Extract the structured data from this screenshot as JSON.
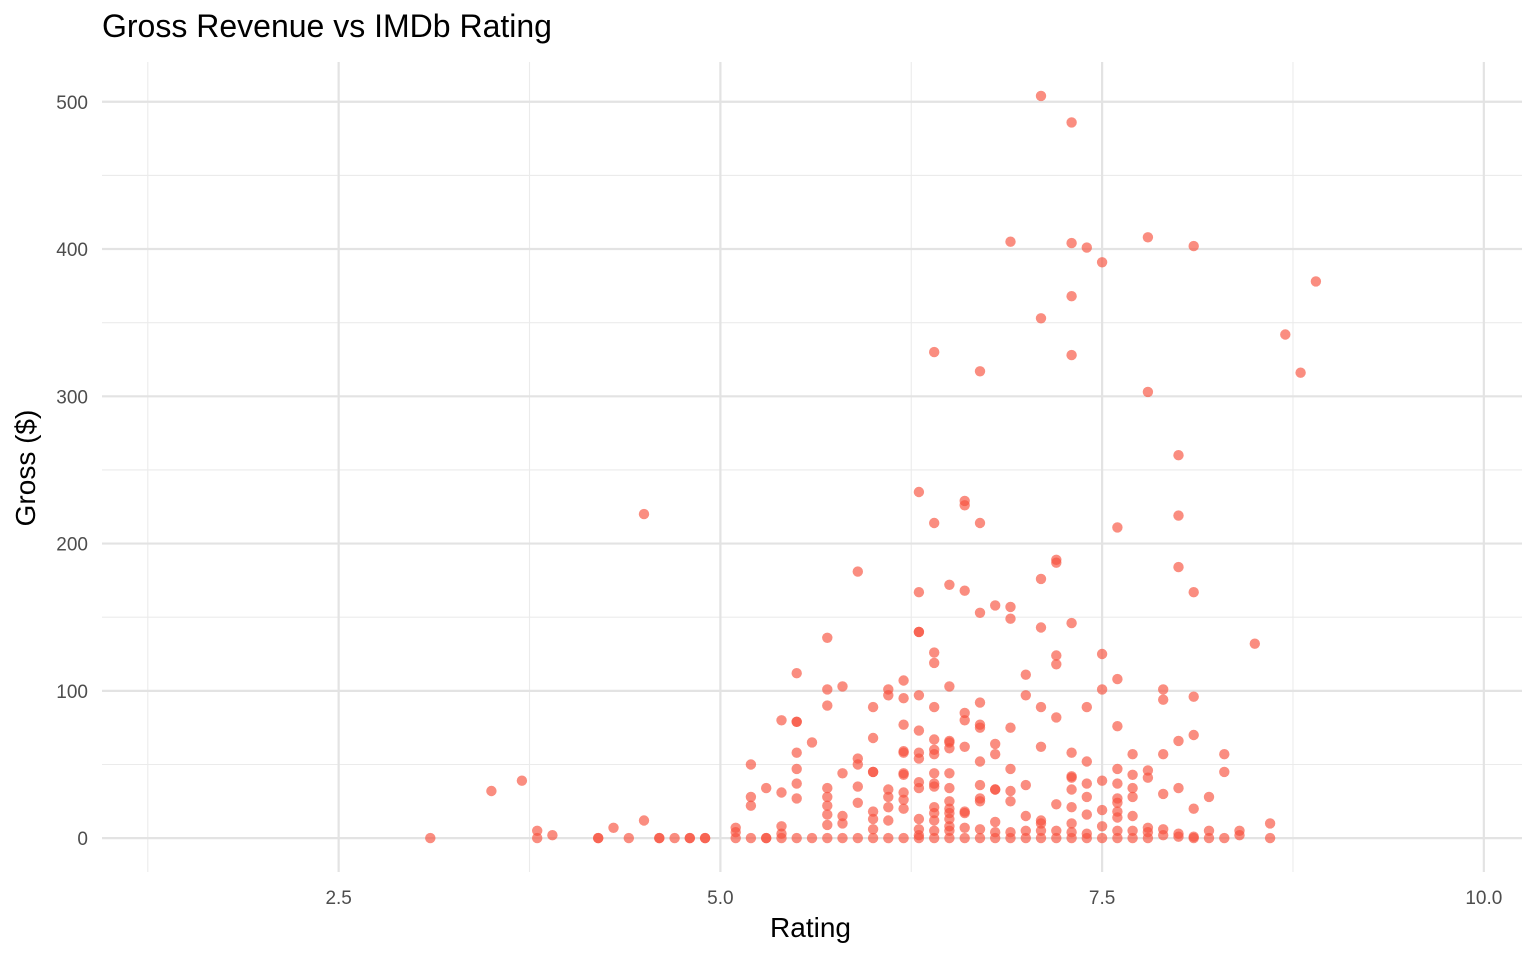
{
  "chart_data": {
    "type": "scatter",
    "title": "Gross Revenue vs IMDb Rating",
    "xlabel": "Rating",
    "ylabel": "Gross ($)",
    "xlim": [
      0.95,
      10.25
    ],
    "ylim": [
      -23,
      527
    ],
    "x_ticks": [
      2.5,
      5.0,
      7.5,
      10.0
    ],
    "x_tick_labels": [
      "2.5",
      "5.0",
      "7.5",
      "10.0"
    ],
    "y_ticks": [
      0,
      100,
      200,
      300,
      400,
      500
    ],
    "y_tick_labels": [
      "0",
      "100",
      "200",
      "300",
      "400",
      "500"
    ],
    "grid": true,
    "legend": "none",
    "point_color": "#f8503c",
    "points": [
      [
        3.1,
        0
      ],
      [
        3.5,
        32
      ],
      [
        3.7,
        39
      ],
      [
        3.8,
        5
      ],
      [
        3.8,
        0
      ],
      [
        3.9,
        2
      ],
      [
        4.2,
        0
      ],
      [
        4.2,
        0
      ],
      [
        4.3,
        7
      ],
      [
        4.4,
        0
      ],
      [
        4.5,
        12
      ],
      [
        4.5,
        220
      ],
      [
        4.6,
        0
      ],
      [
        4.6,
        0
      ],
      [
        4.7,
        0
      ],
      [
        4.8,
        0
      ],
      [
        4.8,
        0
      ],
      [
        4.9,
        0
      ],
      [
        4.9,
        0
      ],
      [
        5.1,
        7
      ],
      [
        5.1,
        4
      ],
      [
        5.1,
        0
      ],
      [
        5.2,
        50
      ],
      [
        5.2,
        28
      ],
      [
        5.2,
        22
      ],
      [
        5.2,
        0
      ],
      [
        5.3,
        34
      ],
      [
        5.3,
        0
      ],
      [
        5.3,
        0
      ],
      [
        5.4,
        80
      ],
      [
        5.4,
        31
      ],
      [
        5.4,
        8
      ],
      [
        5.4,
        3
      ],
      [
        5.4,
        0
      ],
      [
        5.5,
        112
      ],
      [
        5.5,
        79
      ],
      [
        5.5,
        79
      ],
      [
        5.5,
        58
      ],
      [
        5.5,
        47
      ],
      [
        5.5,
        37
      ],
      [
        5.5,
        27
      ],
      [
        5.5,
        0
      ],
      [
        5.6,
        65
      ],
      [
        5.6,
        0
      ],
      [
        5.7,
        136
      ],
      [
        5.7,
        101
      ],
      [
        5.7,
        90
      ],
      [
        5.7,
        34
      ],
      [
        5.7,
        28
      ],
      [
        5.7,
        22
      ],
      [
        5.7,
        16
      ],
      [
        5.7,
        9
      ],
      [
        5.7,
        0
      ],
      [
        5.8,
        103
      ],
      [
        5.8,
        44
      ],
      [
        5.8,
        15
      ],
      [
        5.8,
        10
      ],
      [
        5.8,
        0
      ],
      [
        5.9,
        181
      ],
      [
        5.9,
        54
      ],
      [
        5.9,
        50
      ],
      [
        5.9,
        35
      ],
      [
        5.9,
        24
      ],
      [
        5.9,
        0
      ],
      [
        6.0,
        89
      ],
      [
        6.0,
        68
      ],
      [
        6.0,
        45
      ],
      [
        6.0,
        45
      ],
      [
        6.0,
        18
      ],
      [
        6.0,
        13
      ],
      [
        6.0,
        6
      ],
      [
        6.0,
        0
      ],
      [
        6.1,
        101
      ],
      [
        6.1,
        97
      ],
      [
        6.1,
        33
      ],
      [
        6.1,
        28
      ],
      [
        6.1,
        21
      ],
      [
        6.1,
        12
      ],
      [
        6.1,
        0
      ],
      [
        6.2,
        107
      ],
      [
        6.2,
        95
      ],
      [
        6.2,
        77
      ],
      [
        6.2,
        59
      ],
      [
        6.2,
        58
      ],
      [
        6.2,
        44
      ],
      [
        6.2,
        43
      ],
      [
        6.2,
        31
      ],
      [
        6.2,
        26
      ],
      [
        6.2,
        20
      ],
      [
        6.2,
        0
      ],
      [
        6.3,
        235
      ],
      [
        6.3,
        167
      ],
      [
        6.3,
        140
      ],
      [
        6.3,
        140
      ],
      [
        6.3,
        97
      ],
      [
        6.3,
        73
      ],
      [
        6.3,
        58
      ],
      [
        6.3,
        54
      ],
      [
        6.3,
        38
      ],
      [
        6.3,
        34
      ],
      [
        6.3,
        13
      ],
      [
        6.3,
        6
      ],
      [
        6.3,
        2
      ],
      [
        6.3,
        0
      ],
      [
        6.4,
        330
      ],
      [
        6.4,
        214
      ],
      [
        6.4,
        126
      ],
      [
        6.4,
        119
      ],
      [
        6.4,
        89
      ],
      [
        6.4,
        67
      ],
      [
        6.4,
        60
      ],
      [
        6.4,
        57
      ],
      [
        6.4,
        44
      ],
      [
        6.4,
        37
      ],
      [
        6.4,
        35
      ],
      [
        6.4,
        21
      ],
      [
        6.4,
        17
      ],
      [
        6.4,
        12
      ],
      [
        6.4,
        5
      ],
      [
        6.4,
        0
      ],
      [
        6.5,
        172
      ],
      [
        6.5,
        103
      ],
      [
        6.5,
        66
      ],
      [
        6.5,
        65
      ],
      [
        6.5,
        61
      ],
      [
        6.5,
        44
      ],
      [
        6.5,
        34
      ],
      [
        6.5,
        25
      ],
      [
        6.5,
        20
      ],
      [
        6.5,
        17
      ],
      [
        6.5,
        13
      ],
      [
        6.5,
        8
      ],
      [
        6.5,
        5
      ],
      [
        6.5,
        0
      ],
      [
        6.6,
        229
      ],
      [
        6.6,
        226
      ],
      [
        6.6,
        168
      ],
      [
        6.6,
        85
      ],
      [
        6.6,
        80
      ],
      [
        6.6,
        62
      ],
      [
        6.6,
        18
      ],
      [
        6.6,
        17
      ],
      [
        6.6,
        7
      ],
      [
        6.6,
        0
      ],
      [
        6.7,
        317
      ],
      [
        6.7,
        214
      ],
      [
        6.7,
        153
      ],
      [
        6.7,
        92
      ],
      [
        6.7,
        77
      ],
      [
        6.7,
        75
      ],
      [
        6.7,
        52
      ],
      [
        6.7,
        36
      ],
      [
        6.7,
        27
      ],
      [
        6.7,
        25
      ],
      [
        6.7,
        6
      ],
      [
        6.7,
        0
      ],
      [
        6.8,
        158
      ],
      [
        6.8,
        64
      ],
      [
        6.8,
        57
      ],
      [
        6.8,
        33
      ],
      [
        6.8,
        33
      ],
      [
        6.8,
        11
      ],
      [
        6.8,
        4
      ],
      [
        6.8,
        0
      ],
      [
        6.9,
        405
      ],
      [
        6.9,
        157
      ],
      [
        6.9,
        149
      ],
      [
        6.9,
        75
      ],
      [
        6.9,
        47
      ],
      [
        6.9,
        32
      ],
      [
        6.9,
        25
      ],
      [
        6.9,
        4
      ],
      [
        6.9,
        0
      ],
      [
        7.0,
        111
      ],
      [
        7.0,
        97
      ],
      [
        7.0,
        36
      ],
      [
        7.0,
        15
      ],
      [
        7.0,
        5
      ],
      [
        7.0,
        0
      ],
      [
        7.1,
        504
      ],
      [
        7.1,
        353
      ],
      [
        7.1,
        176
      ],
      [
        7.1,
        143
      ],
      [
        7.1,
        89
      ],
      [
        7.1,
        62
      ],
      [
        7.1,
        12
      ],
      [
        7.1,
        10
      ],
      [
        7.1,
        5
      ],
      [
        7.1,
        0
      ],
      [
        7.2,
        189
      ],
      [
        7.2,
        187
      ],
      [
        7.2,
        124
      ],
      [
        7.2,
        118
      ],
      [
        7.2,
        82
      ],
      [
        7.2,
        23
      ],
      [
        7.2,
        5
      ],
      [
        7.2,
        0
      ],
      [
        7.3,
        486
      ],
      [
        7.3,
        404
      ],
      [
        7.3,
        368
      ],
      [
        7.3,
        328
      ],
      [
        7.3,
        146
      ],
      [
        7.3,
        58
      ],
      [
        7.3,
        42
      ],
      [
        7.3,
        41
      ],
      [
        7.3,
        33
      ],
      [
        7.3,
        21
      ],
      [
        7.3,
        10
      ],
      [
        7.3,
        4
      ],
      [
        7.3,
        0
      ],
      [
        7.4,
        401
      ],
      [
        7.4,
        89
      ],
      [
        7.4,
        52
      ],
      [
        7.4,
        37
      ],
      [
        7.4,
        28
      ],
      [
        7.4,
        16
      ],
      [
        7.4,
        3
      ],
      [
        7.4,
        0
      ],
      [
        7.5,
        391
      ],
      [
        7.5,
        125
      ],
      [
        7.5,
        101
      ],
      [
        7.5,
        39
      ],
      [
        7.5,
        19
      ],
      [
        7.5,
        8
      ],
      [
        7.5,
        0
      ],
      [
        7.6,
        211
      ],
      [
        7.6,
        108
      ],
      [
        7.6,
        76
      ],
      [
        7.6,
        47
      ],
      [
        7.6,
        37
      ],
      [
        7.6,
        27
      ],
      [
        7.6,
        24
      ],
      [
        7.6,
        18
      ],
      [
        7.6,
        14
      ],
      [
        7.6,
        5
      ],
      [
        7.6,
        0
      ],
      [
        7.7,
        57
      ],
      [
        7.7,
        43
      ],
      [
        7.7,
        34
      ],
      [
        7.7,
        28
      ],
      [
        7.7,
        15
      ],
      [
        7.7,
        5
      ],
      [
        7.7,
        0
      ],
      [
        7.8,
        408
      ],
      [
        7.8,
        303
      ],
      [
        7.8,
        46
      ],
      [
        7.8,
        41
      ],
      [
        7.8,
        7
      ],
      [
        7.8,
        4
      ],
      [
        7.8,
        0
      ],
      [
        7.9,
        101
      ],
      [
        7.9,
        94
      ],
      [
        7.9,
        57
      ],
      [
        7.9,
        30
      ],
      [
        7.9,
        6
      ],
      [
        7.9,
        2
      ],
      [
        8.0,
        260
      ],
      [
        8.0,
        219
      ],
      [
        8.0,
        184
      ],
      [
        8.0,
        66
      ],
      [
        8.0,
        34
      ],
      [
        8.0,
        3
      ],
      [
        8.0,
        1
      ],
      [
        8.1,
        402
      ],
      [
        8.1,
        167
      ],
      [
        8.1,
        96
      ],
      [
        8.1,
        70
      ],
      [
        8.1,
        20
      ],
      [
        8.1,
        1
      ],
      [
        8.1,
        0
      ],
      [
        8.2,
        28
      ],
      [
        8.2,
        5
      ],
      [
        8.2,
        0
      ],
      [
        8.3,
        57
      ],
      [
        8.3,
        45
      ],
      [
        8.3,
        0
      ],
      [
        8.4,
        5
      ],
      [
        8.4,
        2
      ],
      [
        8.5,
        132
      ],
      [
        8.6,
        10
      ],
      [
        8.6,
        0
      ],
      [
        8.7,
        342
      ],
      [
        8.8,
        316
      ],
      [
        8.9,
        378
      ]
    ]
  }
}
